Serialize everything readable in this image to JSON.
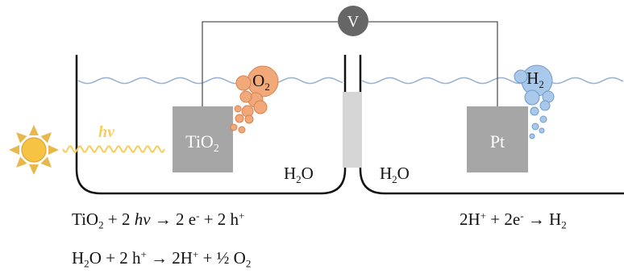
{
  "voltmeter": {
    "label": "V"
  },
  "light": {
    "photon_label": "hv"
  },
  "electrodes": {
    "anode": {
      "base": "TiO",
      "sub": "2"
    },
    "cathode": {
      "label": "Pt"
    }
  },
  "bubbles": {
    "oxygen": {
      "base": "O",
      "sub": "2"
    },
    "hydrogen": {
      "base": "H",
      "sub": "2"
    }
  },
  "compartments": {
    "left_solvent": {
      "base": "H",
      "sub": "2",
      "tail": "O"
    },
    "right_solvent": {
      "base": "H",
      "sub": "2",
      "tail": "O"
    }
  },
  "equations": {
    "anode_1": {
      "a": "TiO",
      "a_sub": "2",
      "b": " + 2 ",
      "hv": "hv",
      "c": " → 2 e",
      "c_sup": "-",
      "d": " + 2 h",
      "d_sup": "+"
    },
    "anode_2": {
      "a": "H",
      "a_sub": "2",
      "b": "O + 2 h",
      "b_sup": "+",
      "c": " → 2H",
      "c_sup": "+",
      "d": " + ½ O",
      "d_sub": "2"
    },
    "cathode": {
      "a": "2H",
      "a_sup": "+",
      "b": " + 2e",
      "b_sup": "-",
      "c": " → H",
      "c_sub": "2"
    }
  },
  "colors": {
    "sun": "#f6c343",
    "sun_rays": "#e8b84a",
    "photon_wave": "#f5cf5a",
    "electrode": "#a6a6a6",
    "o2_bubble": "#f2a97a",
    "h2_bubble": "#a9c8ea",
    "water_line": "#9ab3d3",
    "voltmeter": "#666666",
    "membrane": "#d6d6d6"
  }
}
